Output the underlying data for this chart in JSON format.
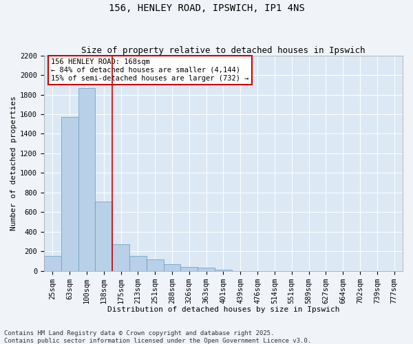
{
  "title1": "156, HENLEY ROAD, IPSWICH, IP1 4NS",
  "title2": "Size of property relative to detached houses in Ipswich",
  "xlabel": "Distribution of detached houses by size in Ipswich",
  "ylabel": "Number of detached properties",
  "categories": [
    "25sqm",
    "63sqm",
    "100sqm",
    "138sqm",
    "175sqm",
    "213sqm",
    "251sqm",
    "288sqm",
    "326sqm",
    "363sqm",
    "401sqm",
    "439sqm",
    "476sqm",
    "514sqm",
    "551sqm",
    "589sqm",
    "627sqm",
    "664sqm",
    "702sqm",
    "739sqm",
    "777sqm"
  ],
  "values": [
    150,
    1570,
    1870,
    710,
    270,
    155,
    115,
    65,
    40,
    30,
    10,
    0,
    0,
    0,
    0,
    0,
    0,
    0,
    0,
    0,
    0
  ],
  "bar_color": "#b8d0e8",
  "bar_edge_color": "#6699bb",
  "vline_pos": 3.5,
  "vline_color": "#cc0000",
  "annotation_title": "156 HENLEY ROAD: 168sqm",
  "annotation_line1": "← 84% of detached houses are smaller (4,144)",
  "annotation_line2": "15% of semi-detached houses are larger (732) →",
  "annotation_box_edgecolor": "#cc0000",
  "annotation_bg": "#ffffff",
  "ylim": [
    0,
    2200
  ],
  "yticks": [
    0,
    200,
    400,
    600,
    800,
    1000,
    1200,
    1400,
    1600,
    1800,
    2000,
    2200
  ],
  "plot_bg": "#dce9f5",
  "fig_bg": "#f0f4f8",
  "grid_color": "#ffffff",
  "footer1": "Contains HM Land Registry data © Crown copyright and database right 2025.",
  "footer2": "Contains public sector information licensed under the Open Government Licence v3.0.",
  "title_fontsize": 10,
  "subtitle_fontsize": 9,
  "axis_label_fontsize": 8,
  "tick_fontsize": 7.5,
  "footer_fontsize": 6.5,
  "annotation_fontsize": 7.5
}
